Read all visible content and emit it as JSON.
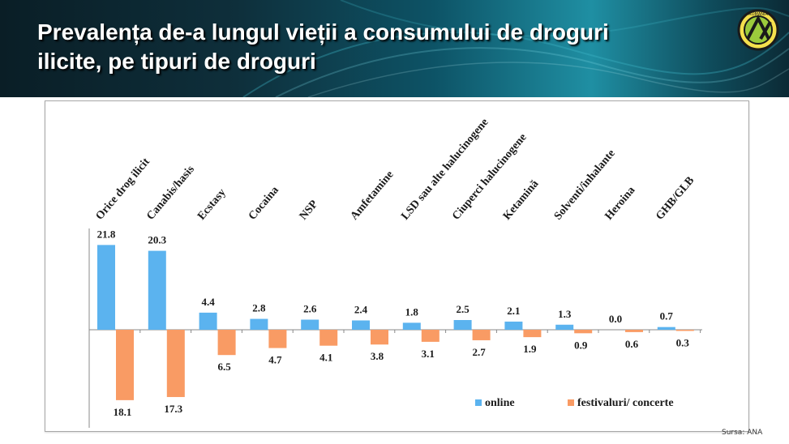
{
  "header": {
    "title_line1": "Prevalența de-a lungul vieții a consumului de droguri",
    "title_line2": "ilicite, pe tipuri  de droguri"
  },
  "logo": {
    "icon": "ana-logo-icon",
    "text": "ROMÂNIA"
  },
  "source": "Sursa: ANA",
  "colors": {
    "online": "#5bb3ef",
    "festival": "#f99b64",
    "axis": "#888888"
  },
  "chart_data": {
    "type": "bar",
    "categories": [
      "Orice drog ilicit",
      "Canabis/hasis",
      "Ecstasy",
      "Cocaina",
      "NSP",
      "Amfetamine",
      "LSD sau alte halucinogene",
      "Ciuperci halucinogene",
      "Ketamină",
      "Solventi/inhalante",
      "Heroina",
      "GHB/GLB"
    ],
    "series": [
      {
        "name": "online",
        "values": [
          21.8,
          20.3,
          4.4,
          2.8,
          2.6,
          2.4,
          1.8,
          2.5,
          2.1,
          1.3,
          0.0,
          0.7
        ],
        "labels": [
          "21.8",
          "20.3",
          "4.4",
          "2.8",
          "2.6",
          "2.4",
          "1.8",
          "2.5",
          "2.1",
          "1.3",
          "0.0",
          "0.7"
        ],
        "direction": "up"
      },
      {
        "name": "festivaluri/ concerte",
        "values": [
          18.1,
          17.3,
          6.5,
          4.7,
          4.1,
          3.8,
          3.1,
          2.7,
          1.9,
          0.9,
          0.6,
          0.3
        ],
        "labels": [
          "18.1",
          "17.3",
          "6.5",
          "4.7",
          "4.1",
          "3.8",
          "3.1",
          "2.7",
          "1.9",
          "0.9",
          "0.6",
          "0.3"
        ],
        "direction": "down"
      }
    ],
    "title": "Prevalența de-a lungul vieții a consumului de droguri ilicite, pe tipuri  de droguri",
    "xlabel": "",
    "ylabel": "",
    "grid": false,
    "legend_placement": "bottom-right"
  }
}
